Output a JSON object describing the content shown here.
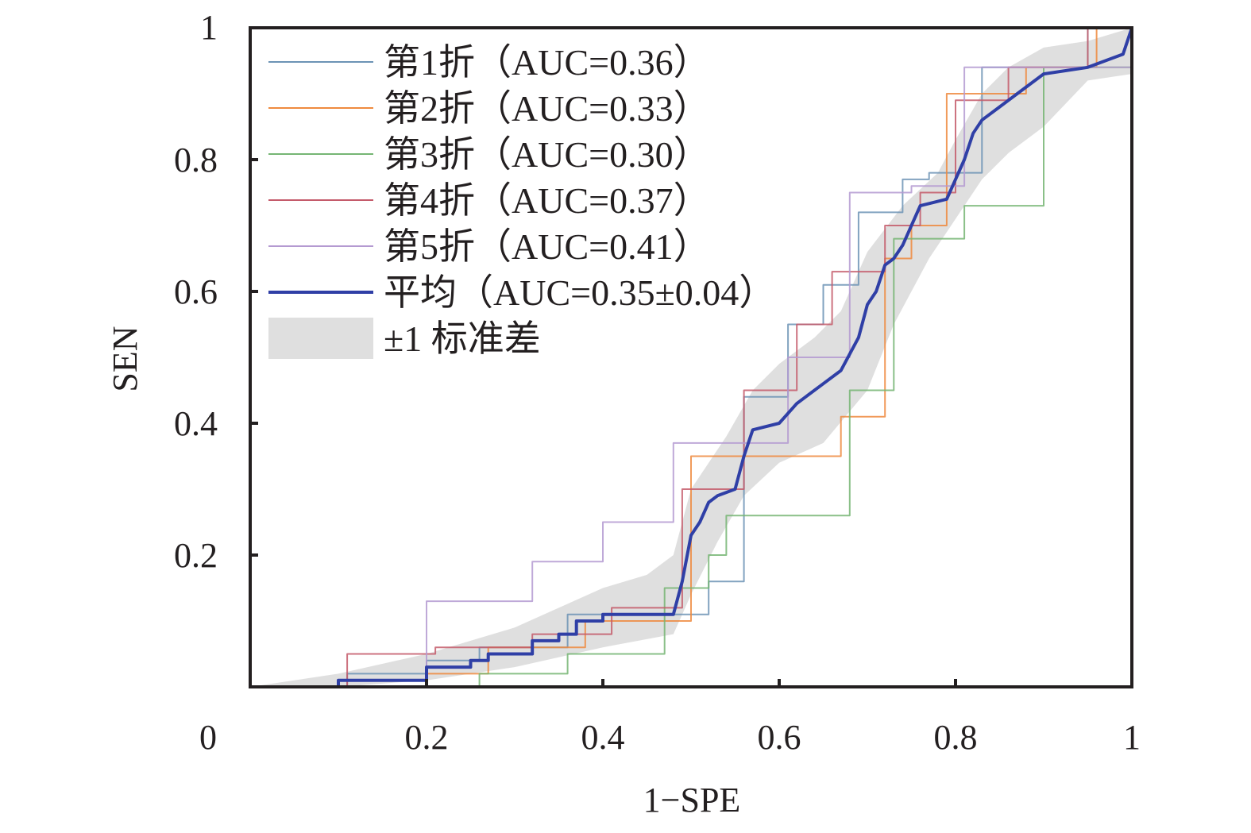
{
  "chart_data": {
    "type": "line",
    "xlabel": "1−SPE",
    "ylabel": "SEN",
    "xlim": [
      0,
      1
    ],
    "ylim": [
      0,
      1
    ],
    "x_ticks": [
      "0",
      "0.2",
      "0.4",
      "0.6",
      "0.8",
      "1"
    ],
    "y_ticks": [
      "0.2",
      "0.4",
      "0.6",
      "0.8",
      "1"
    ],
    "legend_position": "top-left",
    "series": [
      {
        "name": "第1折（AUC=0.36）",
        "color": "#6c93b5",
        "points": [
          [
            0,
            0
          ],
          [
            0.11,
            0
          ],
          [
            0.11,
            0.02
          ],
          [
            0.2,
            0.02
          ],
          [
            0.2,
            0.04
          ],
          [
            0.26,
            0.04
          ],
          [
            0.26,
            0.06
          ],
          [
            0.36,
            0.06
          ],
          [
            0.36,
            0.11
          ],
          [
            0.52,
            0.11
          ],
          [
            0.52,
            0.16
          ],
          [
            0.56,
            0.16
          ],
          [
            0.56,
            0.44
          ],
          [
            0.61,
            0.44
          ],
          [
            0.61,
            0.55
          ],
          [
            0.65,
            0.55
          ],
          [
            0.65,
            0.61
          ],
          [
            0.69,
            0.61
          ],
          [
            0.69,
            0.72
          ],
          [
            0.74,
            0.72
          ],
          [
            0.74,
            0.77
          ],
          [
            0.77,
            0.77
          ],
          [
            0.77,
            0.78
          ],
          [
            0.83,
            0.78
          ],
          [
            0.83,
            0.94
          ],
          [
            0.95,
            0.94
          ],
          [
            0.95,
            1
          ],
          [
            1,
            1
          ]
        ]
      },
      {
        "name": "第2折（AUC=0.33）",
        "color": "#ef8a3e",
        "points": [
          [
            0,
            0
          ],
          [
            0.2,
            0
          ],
          [
            0.2,
            0.02
          ],
          [
            0.27,
            0.02
          ],
          [
            0.27,
            0.06
          ],
          [
            0.38,
            0.06
          ],
          [
            0.38,
            0.1
          ],
          [
            0.5,
            0.1
          ],
          [
            0.5,
            0.35
          ],
          [
            0.67,
            0.35
          ],
          [
            0.67,
            0.41
          ],
          [
            0.72,
            0.41
          ],
          [
            0.72,
            0.65
          ],
          [
            0.75,
            0.65
          ],
          [
            0.75,
            0.7
          ],
          [
            0.79,
            0.7
          ],
          [
            0.79,
            0.9
          ],
          [
            0.88,
            0.9
          ],
          [
            0.88,
            0.94
          ],
          [
            0.96,
            0.94
          ],
          [
            0.96,
            1
          ],
          [
            1,
            1
          ]
        ]
      },
      {
        "name": "第3折（AUC=0.30）",
        "color": "#75b573",
        "points": [
          [
            0,
            0
          ],
          [
            0.26,
            0
          ],
          [
            0.26,
            0.02
          ],
          [
            0.36,
            0.02
          ],
          [
            0.36,
            0.05
          ],
          [
            0.47,
            0.05
          ],
          [
            0.47,
            0.15
          ],
          [
            0.52,
            0.15
          ],
          [
            0.52,
            0.2
          ],
          [
            0.54,
            0.2
          ],
          [
            0.54,
            0.26
          ],
          [
            0.68,
            0.26
          ],
          [
            0.68,
            0.45
          ],
          [
            0.73,
            0.45
          ],
          [
            0.73,
            0.68
          ],
          [
            0.81,
            0.68
          ],
          [
            0.81,
            0.73
          ],
          [
            0.9,
            0.73
          ],
          [
            0.9,
            0.94
          ],
          [
            1,
            0.94
          ],
          [
            1,
            1
          ]
        ]
      },
      {
        "name": "第4折（AUC=0.37）",
        "color": "#c45a6a",
        "points": [
          [
            0,
            0
          ],
          [
            0.11,
            0
          ],
          [
            0.11,
            0.05
          ],
          [
            0.21,
            0.05
          ],
          [
            0.21,
            0.06
          ],
          [
            0.32,
            0.06
          ],
          [
            0.32,
            0.08
          ],
          [
            0.41,
            0.08
          ],
          [
            0.41,
            0.12
          ],
          [
            0.49,
            0.12
          ],
          [
            0.49,
            0.3
          ],
          [
            0.56,
            0.3
          ],
          [
            0.56,
            0.45
          ],
          [
            0.62,
            0.45
          ],
          [
            0.62,
            0.55
          ],
          [
            0.66,
            0.55
          ],
          [
            0.66,
            0.63
          ],
          [
            0.72,
            0.63
          ],
          [
            0.72,
            0.7
          ],
          [
            0.76,
            0.7
          ],
          [
            0.76,
            0.75
          ],
          [
            0.8,
            0.75
          ],
          [
            0.8,
            0.89
          ],
          [
            0.86,
            0.89
          ],
          [
            0.86,
            0.94
          ],
          [
            0.95,
            0.94
          ],
          [
            0.95,
            1
          ],
          [
            1,
            1
          ]
        ]
      },
      {
        "name": "第5折（AUC=0.41）",
        "color": "#b49ad1",
        "points": [
          [
            0,
            0
          ],
          [
            0.2,
            0
          ],
          [
            0.2,
            0.13
          ],
          [
            0.32,
            0.13
          ],
          [
            0.32,
            0.19
          ],
          [
            0.4,
            0.19
          ],
          [
            0.4,
            0.25
          ],
          [
            0.48,
            0.25
          ],
          [
            0.48,
            0.37
          ],
          [
            0.61,
            0.37
          ],
          [
            0.61,
            0.5
          ],
          [
            0.68,
            0.5
          ],
          [
            0.68,
            0.75
          ],
          [
            0.75,
            0.75
          ],
          [
            0.75,
            0.76
          ],
          [
            0.81,
            0.76
          ],
          [
            0.81,
            0.94
          ],
          [
            1,
            0.94
          ],
          [
            1,
            1
          ]
        ]
      },
      {
        "name": "平均（AUC=0.35±0.04）",
        "color": "#2f3fa6",
        "points": [
          [
            0,
            0
          ],
          [
            0.1,
            0
          ],
          [
            0.1,
            0.01
          ],
          [
            0.2,
            0.01
          ],
          [
            0.2,
            0.03
          ],
          [
            0.25,
            0.03
          ],
          [
            0.25,
            0.04
          ],
          [
            0.27,
            0.04
          ],
          [
            0.27,
            0.05
          ],
          [
            0.32,
            0.05
          ],
          [
            0.32,
            0.07
          ],
          [
            0.35,
            0.07
          ],
          [
            0.35,
            0.08
          ],
          [
            0.37,
            0.08
          ],
          [
            0.37,
            0.1
          ],
          [
            0.4,
            0.1
          ],
          [
            0.4,
            0.11
          ],
          [
            0.48,
            0.11
          ],
          [
            0.49,
            0.16
          ],
          [
            0.5,
            0.23
          ],
          [
            0.51,
            0.25
          ],
          [
            0.52,
            0.28
          ],
          [
            0.53,
            0.29
          ],
          [
            0.55,
            0.3
          ],
          [
            0.56,
            0.35
          ],
          [
            0.57,
            0.39
          ],
          [
            0.6,
            0.4
          ],
          [
            0.62,
            0.43
          ],
          [
            0.63,
            0.44
          ],
          [
            0.65,
            0.46
          ],
          [
            0.67,
            0.48
          ],
          [
            0.69,
            0.53
          ],
          [
            0.7,
            0.58
          ],
          [
            0.71,
            0.6
          ],
          [
            0.72,
            0.64
          ],
          [
            0.73,
            0.65
          ],
          [
            0.74,
            0.67
          ],
          [
            0.75,
            0.7
          ],
          [
            0.76,
            0.73
          ],
          [
            0.79,
            0.74
          ],
          [
            0.8,
            0.77
          ],
          [
            0.81,
            0.8
          ],
          [
            0.82,
            0.84
          ],
          [
            0.83,
            0.86
          ],
          [
            0.85,
            0.88
          ],
          [
            0.87,
            0.9
          ],
          [
            0.9,
            0.93
          ],
          [
            0.95,
            0.94
          ],
          [
            0.99,
            0.96
          ],
          [
            1,
            1
          ]
        ]
      }
    ],
    "band": {
      "name": "±1 标准差",
      "color": "#c9c9c9",
      "upper": [
        [
          0,
          0
        ],
        [
          0.1,
          0.02
        ],
        [
          0.2,
          0.05
        ],
        [
          0.25,
          0.07
        ],
        [
          0.3,
          0.09
        ],
        [
          0.35,
          0.12
        ],
        [
          0.4,
          0.15
        ],
        [
          0.45,
          0.17
        ],
        [
          0.48,
          0.2
        ],
        [
          0.5,
          0.3
        ],
        [
          0.54,
          0.38
        ],
        [
          0.57,
          0.45
        ],
        [
          0.6,
          0.49
        ],
        [
          0.64,
          0.53
        ],
        [
          0.67,
          0.57
        ],
        [
          0.7,
          0.66
        ],
        [
          0.74,
          0.73
        ],
        [
          0.78,
          0.78
        ],
        [
          0.8,
          0.83
        ],
        [
          0.83,
          0.9
        ],
        [
          0.86,
          0.94
        ],
        [
          0.9,
          0.97
        ],
        [
          0.95,
          0.98
        ],
        [
          1,
          1
        ]
      ],
      "lower": [
        [
          0,
          0
        ],
        [
          0.1,
          0
        ],
        [
          0.2,
          0.01
        ],
        [
          0.3,
          0.03
        ],
        [
          0.4,
          0.06
        ],
        [
          0.48,
          0.08
        ],
        [
          0.5,
          0.14
        ],
        [
          0.53,
          0.22
        ],
        [
          0.56,
          0.29
        ],
        [
          0.6,
          0.34
        ],
        [
          0.65,
          0.37
        ],
        [
          0.7,
          0.45
        ],
        [
          0.73,
          0.55
        ],
        [
          0.77,
          0.65
        ],
        [
          0.8,
          0.71
        ],
        [
          0.83,
          0.77
        ],
        [
          0.86,
          0.81
        ],
        [
          0.9,
          0.85
        ],
        [
          0.95,
          0.92
        ],
        [
          1,
          0.93
        ]
      ]
    }
  }
}
